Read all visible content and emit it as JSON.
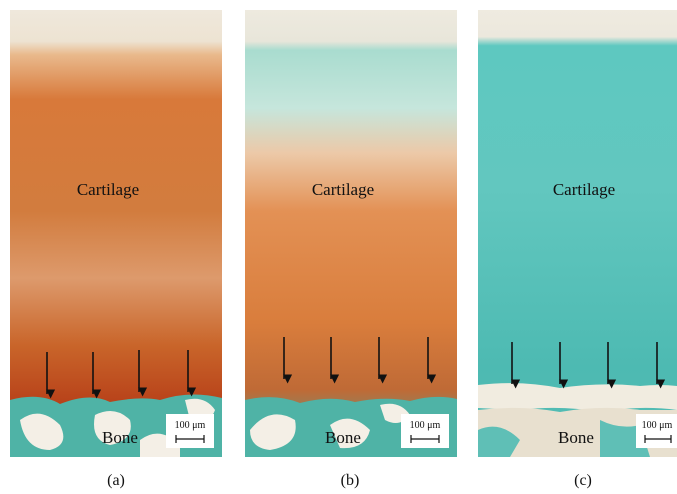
{
  "panels": [
    {
      "top_label": "Cartilage",
      "bottom_label": "Bone",
      "scale_bar": "100 μm",
      "caption": "(a)"
    },
    {
      "top_label": "Cartilage",
      "bottom_label": "Bone",
      "scale_bar": "100 μm",
      "caption": "(b)"
    },
    {
      "top_label": "Cartilage",
      "bottom_label": "Bone",
      "scale_bar": "100 μm",
      "caption": "(c)"
    }
  ]
}
